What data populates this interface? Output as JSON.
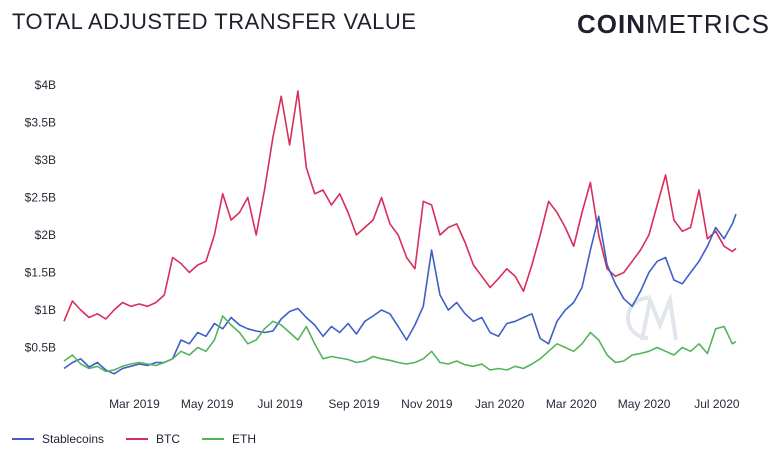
{
  "header": {
    "title": "TOTAL ADJUSTED TRANSFER VALUE",
    "brand_bold": "COIN",
    "brand_light": "METRICS"
  },
  "colors": {
    "Stablecoins": "#3f5fc7",
    "BTC": "#d92d5a",
    "ETH": "#55b35d",
    "watermark": "#e2e6ec"
  },
  "chart_data": {
    "type": "line",
    "title": "TOTAL ADJUSTED TRANSFER VALUE",
    "ylim": [
      0,
      4.2
    ],
    "y_unit": "billions USD",
    "y_ticks": [
      0.5,
      1,
      1.5,
      2,
      2.5,
      3,
      3.5,
      4
    ],
    "y_tick_labels": [
      "$0.5B",
      "$1B",
      "$1.5B",
      "$2B",
      "$2.5B",
      "$3B",
      "$3.5B",
      "$4B"
    ],
    "x_range": [
      "2019-01-01",
      "2020-07-17"
    ],
    "x_ticks": [
      "2019-03-01",
      "2019-05-01",
      "2019-07-01",
      "2019-09-01",
      "2019-11-01",
      "2020-01-01",
      "2020-03-01",
      "2020-05-01",
      "2020-07-01"
    ],
    "x_tick_labels": [
      "Mar 2019",
      "May 2019",
      "Jul 2019",
      "Sep 2019",
      "Nov 2019",
      "Jan 2020",
      "Mar 2020",
      "May 2020",
      "Jul 2020"
    ],
    "legend_position": "bottom-left",
    "grid": false,
    "series": [
      {
        "name": "Stablecoins",
        "color": "#3f5fc7",
        "points": [
          [
            "2019-01-01",
            0.22
          ],
          [
            "2019-01-08",
            0.3
          ],
          [
            "2019-01-15",
            0.35
          ],
          [
            "2019-01-22",
            0.24
          ],
          [
            "2019-01-29",
            0.3
          ],
          [
            "2019-02-05",
            0.2
          ],
          [
            "2019-02-12",
            0.15
          ],
          [
            "2019-02-19",
            0.22
          ],
          [
            "2019-02-26",
            0.25
          ],
          [
            "2019-03-05",
            0.28
          ],
          [
            "2019-03-12",
            0.26
          ],
          [
            "2019-03-19",
            0.3
          ],
          [
            "2019-03-26",
            0.3
          ],
          [
            "2019-04-02",
            0.35
          ],
          [
            "2019-04-09",
            0.6
          ],
          [
            "2019-04-16",
            0.55
          ],
          [
            "2019-04-23",
            0.7
          ],
          [
            "2019-04-30",
            0.65
          ],
          [
            "2019-05-07",
            0.82
          ],
          [
            "2019-05-14",
            0.75
          ],
          [
            "2019-05-21",
            0.9
          ],
          [
            "2019-05-28",
            0.8
          ],
          [
            "2019-06-04",
            0.75
          ],
          [
            "2019-06-11",
            0.72
          ],
          [
            "2019-06-18",
            0.7
          ],
          [
            "2019-06-25",
            0.72
          ],
          [
            "2019-07-02",
            0.88
          ],
          [
            "2019-07-09",
            0.98
          ],
          [
            "2019-07-16",
            1.02
          ],
          [
            "2019-07-23",
            0.9
          ],
          [
            "2019-07-30",
            0.8
          ],
          [
            "2019-08-06",
            0.65
          ],
          [
            "2019-08-13",
            0.78
          ],
          [
            "2019-08-20",
            0.7
          ],
          [
            "2019-08-27",
            0.82
          ],
          [
            "2019-09-03",
            0.68
          ],
          [
            "2019-09-10",
            0.85
          ],
          [
            "2019-09-17",
            0.92
          ],
          [
            "2019-09-24",
            1.0
          ],
          [
            "2019-10-01",
            0.95
          ],
          [
            "2019-10-08",
            0.78
          ],
          [
            "2019-10-15",
            0.6
          ],
          [
            "2019-10-22",
            0.8
          ],
          [
            "2019-10-29",
            1.05
          ],
          [
            "2019-11-05",
            1.8
          ],
          [
            "2019-11-12",
            1.2
          ],
          [
            "2019-11-19",
            1.0
          ],
          [
            "2019-11-26",
            1.1
          ],
          [
            "2019-12-03",
            0.95
          ],
          [
            "2019-12-10",
            0.85
          ],
          [
            "2019-12-17",
            0.9
          ],
          [
            "2019-12-24",
            0.7
          ],
          [
            "2019-12-31",
            0.65
          ],
          [
            "2020-01-07",
            0.82
          ],
          [
            "2020-01-14",
            0.85
          ],
          [
            "2020-01-21",
            0.9
          ],
          [
            "2020-01-28",
            0.95
          ],
          [
            "2020-02-04",
            0.62
          ],
          [
            "2020-02-11",
            0.55
          ],
          [
            "2020-02-18",
            0.85
          ],
          [
            "2020-02-25",
            1.0
          ],
          [
            "2020-03-03",
            1.1
          ],
          [
            "2020-03-10",
            1.3
          ],
          [
            "2020-03-17",
            1.8
          ],
          [
            "2020-03-24",
            2.25
          ],
          [
            "2020-03-31",
            1.6
          ],
          [
            "2020-04-07",
            1.35
          ],
          [
            "2020-04-14",
            1.15
          ],
          [
            "2020-04-21",
            1.05
          ],
          [
            "2020-04-28",
            1.25
          ],
          [
            "2020-05-05",
            1.5
          ],
          [
            "2020-05-12",
            1.65
          ],
          [
            "2020-05-19",
            1.7
          ],
          [
            "2020-05-26",
            1.4
          ],
          [
            "2020-06-02",
            1.35
          ],
          [
            "2020-06-09",
            1.5
          ],
          [
            "2020-06-16",
            1.65
          ],
          [
            "2020-06-23",
            1.85
          ],
          [
            "2020-06-30",
            2.1
          ],
          [
            "2020-07-07",
            1.95
          ],
          [
            "2020-07-14",
            2.15
          ],
          [
            "2020-07-17",
            2.28
          ]
        ]
      },
      {
        "name": "BTC",
        "color": "#d92d5a",
        "points": [
          [
            "2019-01-01",
            0.85
          ],
          [
            "2019-01-08",
            1.12
          ],
          [
            "2019-01-15",
            1.0
          ],
          [
            "2019-01-22",
            0.9
          ],
          [
            "2019-01-29",
            0.95
          ],
          [
            "2019-02-05",
            0.88
          ],
          [
            "2019-02-12",
            1.0
          ],
          [
            "2019-02-19",
            1.1
          ],
          [
            "2019-02-26",
            1.05
          ],
          [
            "2019-03-05",
            1.08
          ],
          [
            "2019-03-12",
            1.05
          ],
          [
            "2019-03-19",
            1.1
          ],
          [
            "2019-03-26",
            1.2
          ],
          [
            "2019-04-02",
            1.7
          ],
          [
            "2019-04-09",
            1.62
          ],
          [
            "2019-04-16",
            1.5
          ],
          [
            "2019-04-23",
            1.6
          ],
          [
            "2019-04-30",
            1.65
          ],
          [
            "2019-05-07",
            2.0
          ],
          [
            "2019-05-14",
            2.55
          ],
          [
            "2019-05-21",
            2.2
          ],
          [
            "2019-05-28",
            2.3
          ],
          [
            "2019-06-04",
            2.5
          ],
          [
            "2019-06-11",
            2.0
          ],
          [
            "2019-06-18",
            2.6
          ],
          [
            "2019-06-25",
            3.3
          ],
          [
            "2019-07-02",
            3.85
          ],
          [
            "2019-07-09",
            3.2
          ],
          [
            "2019-07-16",
            3.92
          ],
          [
            "2019-07-23",
            2.9
          ],
          [
            "2019-07-30",
            2.55
          ],
          [
            "2019-08-06",
            2.6
          ],
          [
            "2019-08-13",
            2.4
          ],
          [
            "2019-08-20",
            2.55
          ],
          [
            "2019-08-27",
            2.3
          ],
          [
            "2019-09-03",
            2.0
          ],
          [
            "2019-09-10",
            2.1
          ],
          [
            "2019-09-17",
            2.2
          ],
          [
            "2019-09-24",
            2.5
          ],
          [
            "2019-10-01",
            2.15
          ],
          [
            "2019-10-08",
            2.0
          ],
          [
            "2019-10-15",
            1.7
          ],
          [
            "2019-10-22",
            1.55
          ],
          [
            "2019-10-29",
            2.45
          ],
          [
            "2019-11-05",
            2.4
          ],
          [
            "2019-11-12",
            2.0
          ],
          [
            "2019-11-19",
            2.1
          ],
          [
            "2019-11-26",
            2.15
          ],
          [
            "2019-12-03",
            1.9
          ],
          [
            "2019-12-10",
            1.6
          ],
          [
            "2019-12-17",
            1.45
          ],
          [
            "2019-12-24",
            1.3
          ],
          [
            "2019-12-31",
            1.42
          ],
          [
            "2020-01-07",
            1.55
          ],
          [
            "2020-01-14",
            1.45
          ],
          [
            "2020-01-21",
            1.25
          ],
          [
            "2020-01-28",
            1.6
          ],
          [
            "2020-02-04",
            2.0
          ],
          [
            "2020-02-11",
            2.45
          ],
          [
            "2020-02-18",
            2.3
          ],
          [
            "2020-02-25",
            2.1
          ],
          [
            "2020-03-03",
            1.85
          ],
          [
            "2020-03-10",
            2.3
          ],
          [
            "2020-03-17",
            2.7
          ],
          [
            "2020-03-24",
            2.0
          ],
          [
            "2020-03-31",
            1.55
          ],
          [
            "2020-04-07",
            1.45
          ],
          [
            "2020-04-14",
            1.5
          ],
          [
            "2020-04-21",
            1.65
          ],
          [
            "2020-04-28",
            1.8
          ],
          [
            "2020-05-05",
            2.0
          ],
          [
            "2020-05-12",
            2.4
          ],
          [
            "2020-05-19",
            2.8
          ],
          [
            "2020-05-26",
            2.2
          ],
          [
            "2020-06-02",
            2.05
          ],
          [
            "2020-06-09",
            2.1
          ],
          [
            "2020-06-16",
            2.6
          ],
          [
            "2020-06-23",
            1.95
          ],
          [
            "2020-06-30",
            2.05
          ],
          [
            "2020-07-07",
            1.85
          ],
          [
            "2020-07-14",
            1.78
          ],
          [
            "2020-07-17",
            1.82
          ]
        ]
      },
      {
        "name": "ETH",
        "color": "#55b35d",
        "points": [
          [
            "2019-01-01",
            0.32
          ],
          [
            "2019-01-08",
            0.4
          ],
          [
            "2019-01-15",
            0.28
          ],
          [
            "2019-01-22",
            0.22
          ],
          [
            "2019-01-29",
            0.25
          ],
          [
            "2019-02-05",
            0.18
          ],
          [
            "2019-02-12",
            0.2
          ],
          [
            "2019-02-19",
            0.25
          ],
          [
            "2019-02-26",
            0.28
          ],
          [
            "2019-03-05",
            0.3
          ],
          [
            "2019-03-12",
            0.28
          ],
          [
            "2019-03-19",
            0.26
          ],
          [
            "2019-03-26",
            0.3
          ],
          [
            "2019-04-02",
            0.35
          ],
          [
            "2019-04-09",
            0.45
          ],
          [
            "2019-04-16",
            0.4
          ],
          [
            "2019-04-23",
            0.5
          ],
          [
            "2019-04-30",
            0.45
          ],
          [
            "2019-05-07",
            0.6
          ],
          [
            "2019-05-14",
            0.92
          ],
          [
            "2019-05-21",
            0.8
          ],
          [
            "2019-05-28",
            0.7
          ],
          [
            "2019-06-04",
            0.55
          ],
          [
            "2019-06-11",
            0.6
          ],
          [
            "2019-06-18",
            0.75
          ],
          [
            "2019-06-25",
            0.85
          ],
          [
            "2019-07-02",
            0.8
          ],
          [
            "2019-07-09",
            0.7
          ],
          [
            "2019-07-16",
            0.6
          ],
          [
            "2019-07-23",
            0.78
          ],
          [
            "2019-07-30",
            0.55
          ],
          [
            "2019-08-06",
            0.35
          ],
          [
            "2019-08-13",
            0.38
          ],
          [
            "2019-08-20",
            0.36
          ],
          [
            "2019-08-27",
            0.34
          ],
          [
            "2019-09-03",
            0.3
          ],
          [
            "2019-09-10",
            0.32
          ],
          [
            "2019-09-17",
            0.38
          ],
          [
            "2019-09-24",
            0.35
          ],
          [
            "2019-10-01",
            0.33
          ],
          [
            "2019-10-08",
            0.3
          ],
          [
            "2019-10-15",
            0.28
          ],
          [
            "2019-10-22",
            0.3
          ],
          [
            "2019-10-29",
            0.35
          ],
          [
            "2019-11-05",
            0.45
          ],
          [
            "2019-11-12",
            0.3
          ],
          [
            "2019-11-19",
            0.28
          ],
          [
            "2019-11-26",
            0.32
          ],
          [
            "2019-12-03",
            0.27
          ],
          [
            "2019-12-10",
            0.25
          ],
          [
            "2019-12-17",
            0.28
          ],
          [
            "2019-12-24",
            0.2
          ],
          [
            "2019-12-31",
            0.22
          ],
          [
            "2020-01-07",
            0.2
          ],
          [
            "2020-01-14",
            0.25
          ],
          [
            "2020-01-21",
            0.22
          ],
          [
            "2020-01-28",
            0.28
          ],
          [
            "2020-02-04",
            0.35
          ],
          [
            "2020-02-11",
            0.45
          ],
          [
            "2020-02-18",
            0.55
          ],
          [
            "2020-02-25",
            0.5
          ],
          [
            "2020-03-03",
            0.45
          ],
          [
            "2020-03-10",
            0.55
          ],
          [
            "2020-03-17",
            0.7
          ],
          [
            "2020-03-24",
            0.6
          ],
          [
            "2020-03-31",
            0.4
          ],
          [
            "2020-04-07",
            0.3
          ],
          [
            "2020-04-14",
            0.32
          ],
          [
            "2020-04-21",
            0.4
          ],
          [
            "2020-04-28",
            0.42
          ],
          [
            "2020-05-05",
            0.45
          ],
          [
            "2020-05-12",
            0.5
          ],
          [
            "2020-05-19",
            0.45
          ],
          [
            "2020-05-26",
            0.4
          ],
          [
            "2020-06-02",
            0.5
          ],
          [
            "2020-06-09",
            0.45
          ],
          [
            "2020-06-16",
            0.55
          ],
          [
            "2020-06-23",
            0.42
          ],
          [
            "2020-06-30",
            0.75
          ],
          [
            "2020-07-07",
            0.78
          ],
          [
            "2020-07-14",
            0.55
          ],
          [
            "2020-07-17",
            0.58
          ]
        ]
      }
    ]
  }
}
